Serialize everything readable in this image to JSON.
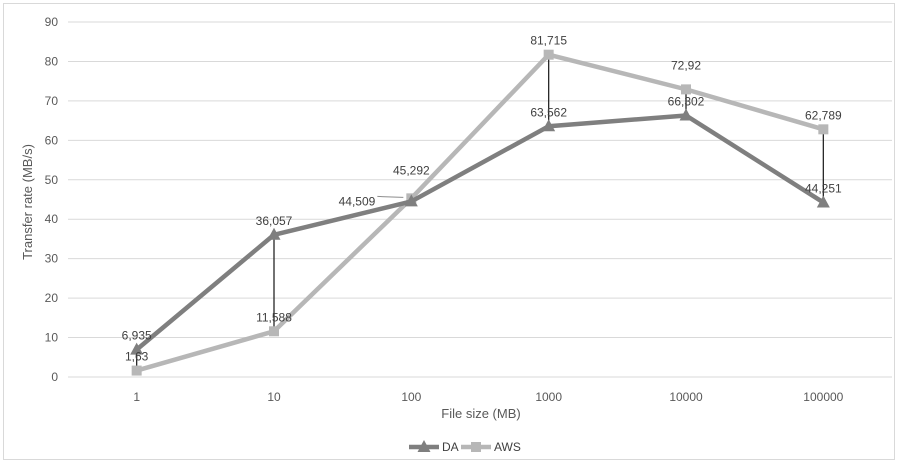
{
  "chart_data": {
    "type": "line",
    "title": "",
    "xlabel": "File size (MB)",
    "ylabel": "Transfer rate (MB/s)",
    "categories": [
      "1",
      "10",
      "100",
      "1000",
      "10000",
      "100000"
    ],
    "ylim": [
      0,
      90
    ],
    "yticks": [
      "0",
      "10",
      "20",
      "30",
      "40",
      "50",
      "60",
      "70",
      "80",
      "90"
    ],
    "grid": true,
    "legend_position": "bottom-center",
    "series": [
      {
        "name": "DA",
        "values": [
          6.935,
          36.057,
          44.509,
          63.562,
          66.302,
          44.251
        ],
        "labels": [
          "6,935",
          "36,057",
          "44,509",
          "63,562",
          "66,302",
          "44,251"
        ],
        "color": "#7f7f7f",
        "marker": "triangle"
      },
      {
        "name": "AWS",
        "values": [
          1.63,
          11.588,
          45.292,
          81.715,
          72.92,
          62.789
        ],
        "labels": [
          "1,63",
          "11,588",
          "45,292",
          "81,715",
          "72,92",
          "62,789"
        ],
        "color": "#b7b7b7",
        "marker": "square"
      }
    ]
  }
}
